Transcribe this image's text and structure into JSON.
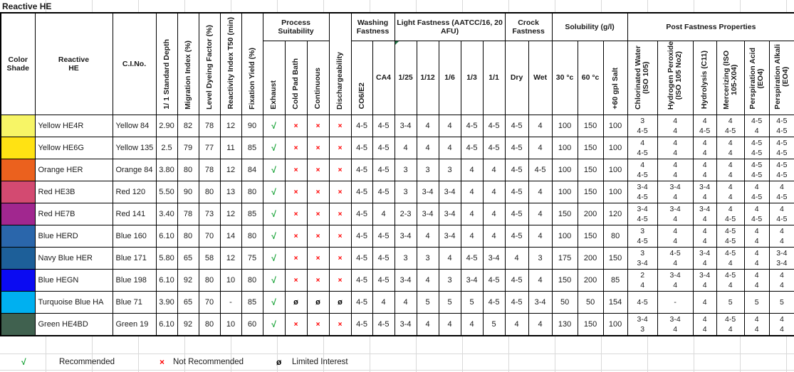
{
  "title": "Reactive HE",
  "headers": {
    "color_shade": [
      "Color",
      "Shade"
    ],
    "reactive_he": [
      "Reactive",
      "HE"
    ],
    "ci_no": "C.I.No.",
    "std_depth": "1/ 1 Standard Depth",
    "migration": "Migration Index (%)",
    "level_dyeing": "Level Dyeing Factor (%)",
    "reactivity": "Reactivity Index T50 (min)",
    "fixation": "Fixation Yield (%)",
    "process_suitability": "Process Suitability",
    "exhaust": "Exhaust",
    "cold_pad_bath": "Cold Pad Bath",
    "continuous": "Continuous",
    "dischargeability": "Dischargeability",
    "washing_fastness": [
      "Washing",
      "Fastness"
    ],
    "co6_e2": "CO6/E2",
    "ca4": "CA4",
    "light_fastness": [
      "Light Fastness (AATCC/16, 20",
      "AFU)"
    ],
    "lf_cols": [
      "1/25",
      "1/12",
      "1/6",
      "1/3",
      "1/1"
    ],
    "crock_fastness": [
      "Crock",
      "Fastness"
    ],
    "dry": "Dry",
    "wet": "Wet",
    "solubility": "Solubility (g/l)",
    "sol_cols": [
      "30 °c",
      "60 °c",
      "+60 gpl Salt"
    ],
    "post_fastness": "Post Fastness Properties",
    "post_cols": [
      [
        "Chlorinated Water",
        "(ISO 105)"
      ],
      [
        "Hydrogen Peroxide",
        "(ISO 105  No2)"
      ],
      [
        "Hydrolysis (C11)"
      ],
      [
        "Mercerizing (ISO",
        "105-X04)"
      ],
      [
        "Perspiration Acid",
        "(EO4)"
      ],
      [
        "Perspiration Alkali",
        "(EO4)"
      ]
    ]
  },
  "marks": {
    "check": {
      "glyph": "√",
      "color": "#0F9F2F",
      "name": "check-icon"
    },
    "cross": {
      "glyph": "×",
      "color": "#FF0000",
      "name": "cross-icon"
    },
    "limited": {
      "glyph": "ø",
      "color": "#000000",
      "name": "limited-interest-icon"
    }
  },
  "rows": [
    {
      "swatch": "#F7F566",
      "name": "Yellow HE4R",
      "ci": "Yellow 84",
      "std": "2.90",
      "mig": "82",
      "ldf": "78",
      "ri": "12",
      "fy": "90",
      "process": [
        "check",
        "cross",
        "cross",
        "cross"
      ],
      "wash": [
        "4-5",
        "4-5"
      ],
      "lf": [
        "3-4",
        "4",
        "4",
        "4-5",
        "4-5"
      ],
      "crock": [
        "4-5",
        "4"
      ],
      "sol": [
        "100",
        "150",
        "100"
      ],
      "post": [
        [
          "3",
          "4-5"
        ],
        [
          "4",
          "4"
        ],
        [
          "4",
          "4-5"
        ],
        [
          "4",
          "4-5"
        ],
        [
          "4-5",
          "4"
        ],
        [
          "4-5",
          "4-5"
        ]
      ]
    },
    {
      "swatch": "#FFE213",
      "name": "Yellow HE6G",
      "ci": "Yellow 135",
      "std": "2.5",
      "mig": "79",
      "ldf": "77",
      "ri": "11",
      "fy": "85",
      "process": [
        "check",
        "cross",
        "cross",
        "cross"
      ],
      "wash": [
        "4-5",
        "4-5"
      ],
      "lf": [
        "4",
        "4",
        "4",
        "4-5",
        "4-5"
      ],
      "crock": [
        "4-5",
        "4"
      ],
      "sol": [
        "100",
        "150",
        "100"
      ],
      "post": [
        [
          "4",
          "4-5"
        ],
        [
          "4",
          "4"
        ],
        [
          "4",
          "4"
        ],
        [
          "4",
          "4"
        ],
        [
          "4-5",
          "4-5"
        ],
        [
          "4-5",
          "4-5"
        ]
      ]
    },
    {
      "swatch": "#EB611E",
      "name": "Orange HER",
      "ci": "Orange 84",
      "std": "3.80",
      "mig": "80",
      "ldf": "78",
      "ri": "12",
      "fy": "84",
      "process": [
        "check",
        "cross",
        "cross",
        "cross"
      ],
      "wash": [
        "4-5",
        "4-5"
      ],
      "lf": [
        "3",
        "3",
        "3",
        "4",
        "4"
      ],
      "crock": [
        "4-5",
        "4-5"
      ],
      "sol": [
        "100",
        "150",
        "100"
      ],
      "post": [
        [
          "4",
          "4-5"
        ],
        [
          "4",
          "4"
        ],
        [
          "4",
          "4"
        ],
        [
          "4",
          "4"
        ],
        [
          "4-5",
          "4-5"
        ],
        [
          "4-5",
          "4-5"
        ]
      ]
    },
    {
      "swatch": "#D34A71",
      "name": "Red HE3B",
      "ci": "Red 120",
      "std": "5.50",
      "mig": "90",
      "ldf": "80",
      "ri": "13",
      "fy": "80",
      "process": [
        "check",
        "cross",
        "cross",
        "cross"
      ],
      "wash": [
        "4-5",
        "4-5"
      ],
      "lf": [
        "3",
        "3-4",
        "3-4",
        "4",
        "4"
      ],
      "crock": [
        "4-5",
        "4"
      ],
      "sol": [
        "100",
        "150",
        "100"
      ],
      "post": [
        [
          "3-4",
          "4-5"
        ],
        [
          "3-4",
          "4"
        ],
        [
          "3-4",
          "4"
        ],
        [
          "4",
          "4"
        ],
        [
          "4",
          "4-5"
        ],
        [
          "4",
          "4-5"
        ]
      ]
    },
    {
      "swatch": "#A1278F",
      "name": "Red HE7B",
      "ci": "Red 141",
      "std": "3.40",
      "mig": "78",
      "ldf": "73",
      "ri": "12",
      "fy": "85",
      "process": [
        "check",
        "cross",
        "cross",
        "cross"
      ],
      "wash": [
        "4-5",
        "4"
      ],
      "lf": [
        "2-3",
        "3-4",
        "3-4",
        "4",
        "4"
      ],
      "crock": [
        "4-5",
        "4"
      ],
      "sol": [
        "150",
        "200",
        "120"
      ],
      "post": [
        [
          "3-4",
          "4-5"
        ],
        [
          "3-4",
          "4"
        ],
        [
          "3-4",
          "4"
        ],
        [
          "4",
          "4-5"
        ],
        [
          "4",
          "4-5"
        ],
        [
          "4",
          "4-5"
        ]
      ]
    },
    {
      "swatch": "#2A66AB",
      "name": "Blue HERD",
      "ci": "Blue 160",
      "std": "6.10",
      "mig": "80",
      "ldf": "70",
      "ri": "14",
      "fy": "80",
      "process": [
        "check",
        "cross",
        "cross",
        "cross"
      ],
      "wash": [
        "4-5",
        "4-5"
      ],
      "lf": [
        "3-4",
        "4",
        "3-4",
        "4",
        "4"
      ],
      "crock": [
        "4-5",
        "4"
      ],
      "sol": [
        "100",
        "150",
        "80"
      ],
      "post": [
        [
          "3",
          "4-5"
        ],
        [
          "4",
          "4"
        ],
        [
          "4",
          "4"
        ],
        [
          "4-5",
          "4-5"
        ],
        [
          "4",
          "4"
        ],
        [
          "4",
          "4"
        ]
      ]
    },
    {
      "swatch": "#1D5F99",
      "name": "Navy Blue HER",
      "ci": "Blue 171",
      "std": "5.80",
      "mig": "65",
      "ldf": "58",
      "ri": "12",
      "fy": "75",
      "process": [
        "check",
        "cross",
        "cross",
        "cross"
      ],
      "wash": [
        "4-5",
        "4-5"
      ],
      "lf": [
        "3",
        "3",
        "4",
        "4-5",
        "3-4"
      ],
      "crock": [
        "4",
        "3"
      ],
      "sol": [
        "175",
        "200",
        "150"
      ],
      "post": [
        [
          "3",
          "3-4"
        ],
        [
          "4-5",
          "4"
        ],
        [
          "3-4",
          "4"
        ],
        [
          "4-5",
          "4"
        ],
        [
          "4",
          "4"
        ],
        [
          "3-4",
          "3-4"
        ]
      ]
    },
    {
      "swatch": "#0B0BF2",
      "name": "Blue HEGN",
      "ci": "Blue 198",
      "std": "6.10",
      "mig": "92",
      "ldf": "80",
      "ri": "10",
      "fy": "80",
      "process": [
        "check",
        "cross",
        "cross",
        "cross"
      ],
      "wash": [
        "4-5",
        "4-5"
      ],
      "lf": [
        "3-4",
        "4",
        "3",
        "3-4",
        "4-5"
      ],
      "crock": [
        "4-5",
        "4"
      ],
      "sol": [
        "150",
        "200",
        "85"
      ],
      "post": [
        [
          "2",
          "4"
        ],
        [
          "3-4",
          "4"
        ],
        [
          "3-4",
          "4"
        ],
        [
          "4-5",
          "4"
        ],
        [
          "4",
          "4"
        ],
        [
          "4",
          "4"
        ]
      ]
    },
    {
      "swatch": "#00B0F0",
      "name": "Turquoise Blue HA",
      "ci": "Blue 71",
      "std": "3.90",
      "mig": "65",
      "ldf": "70",
      "ri": "-",
      "fy": "85",
      "process": [
        "check",
        "limited",
        "limited",
        "limited"
      ],
      "wash": [
        "4-5",
        "4"
      ],
      "lf": [
        "4",
        "5",
        "5",
        "5",
        "4-5"
      ],
      "crock": [
        "4-5",
        "3-4"
      ],
      "sol": [
        "50",
        "50",
        "154"
      ],
      "post": [
        [
          "4-5"
        ],
        [
          "-"
        ],
        [
          "4"
        ],
        [
          "5"
        ],
        [
          "5"
        ],
        [
          "5"
        ]
      ]
    },
    {
      "swatch": "#40614F",
      "name": "Green HE4BD",
      "ci": "Green 19",
      "std": "6.10",
      "mig": "92",
      "ldf": "80",
      "ri": "10",
      "fy": "60",
      "process": [
        "check",
        "cross",
        "cross",
        "cross"
      ],
      "wash": [
        "4-5",
        "4-5"
      ],
      "lf": [
        "3-4",
        "4",
        "4",
        "4",
        "5"
      ],
      "crock": [
        "4",
        "4"
      ],
      "sol": [
        "130",
        "150",
        "100"
      ],
      "post": [
        [
          "3-4",
          "3"
        ],
        [
          "3-4",
          "4"
        ],
        [
          "4",
          "4"
        ],
        [
          "4-5",
          "4"
        ],
        [
          "4",
          "4"
        ],
        [
          "4",
          "4"
        ]
      ]
    }
  ],
  "legend": [
    {
      "mark": "check",
      "label": "Recommended"
    },
    {
      "mark": "cross",
      "label": "Not Recommended"
    },
    {
      "mark": "limited",
      "label": "Limited Interest"
    }
  ]
}
